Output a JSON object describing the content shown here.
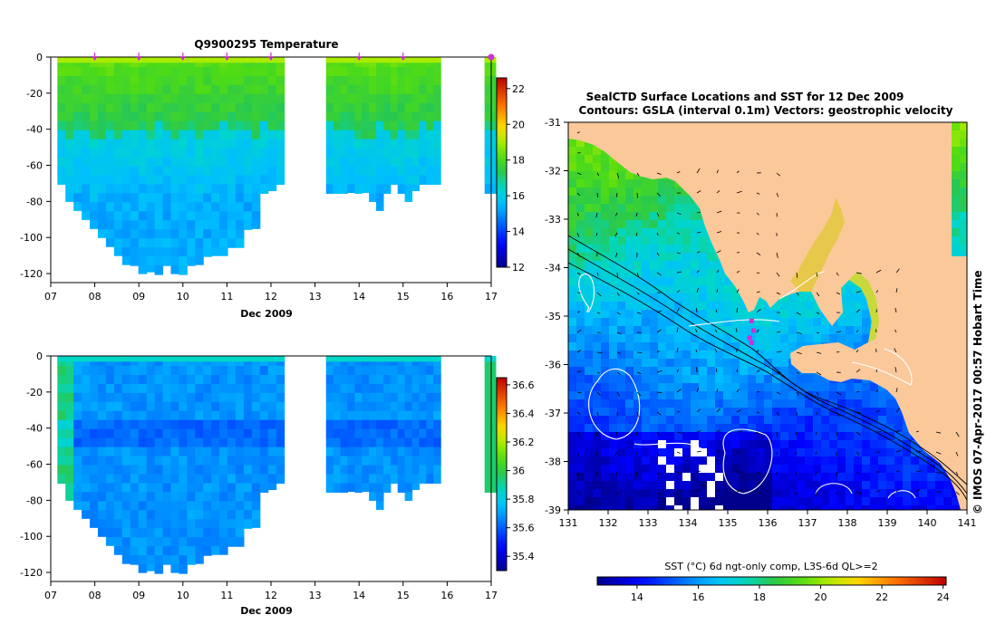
{
  "temperature_title": "Q9900295  Temperature",
  "date_axis_label": "Dec 2009",
  "map_title_line1": "SealCTD Surface Locations and SST for 12 Dec 2009",
  "map_title_line2": "Contours: GSLA (interval 0.1m) Vectors: geostrophic velocity",
  "sst_colorbar_label": "SST (°C) 6d ngt-only comp, L3S-6d QL>=2",
  "vertical_credit": "IMOS 07-Apr-2017 00:57 Hobart Time",
  "copyright_symbol": "©",
  "colors": {
    "land": "#fbc89a",
    "marker": "#d22fd6",
    "contour_white": "#ffffff",
    "contour_black": "#000000"
  },
  "chart_data": [
    {
      "type": "heatmap",
      "name": "temperature-section",
      "title": "Q9900295  Temperature",
      "xlabel": "Dec 2009",
      "x_ticks": [
        "07",
        "08",
        "09",
        "10",
        "11",
        "12",
        "13",
        "14",
        "15",
        "16",
        "17"
      ],
      "y_ticks": [
        "0",
        "-20",
        "-40",
        "-60",
        "-80",
        "-100",
        "-120"
      ],
      "xlim": [
        7,
        17
      ],
      "ylim": [
        -125,
        0
      ],
      "colorbar": {
        "min": 12,
        "max": 22.6,
        "ticks": [
          "12",
          "14",
          "16",
          "18",
          "20",
          "22"
        ]
      },
      "profile_markers_day": [
        8.0,
        9.0,
        10.0,
        11.0,
        12.0,
        14.0,
        15.0,
        17.0
      ],
      "segments": [
        {
          "start": 7.15,
          "end": 12.3,
          "bottom": [
            -72,
            -80,
            -85,
            -90,
            -95,
            -100,
            -105,
            -110,
            -115,
            -118,
            -120,
            -119,
            -121,
            -118,
            -120,
            -121,
            -117,
            -115,
            -112,
            -110,
            -110,
            -108,
            -107,
            -98,
            -95,
            -78,
            -74,
            -73
          ]
        },
        {
          "start": 13.25,
          "end": 15.85,
          "bottom": [
            -78,
            -78,
            -77,
            -75,
            -77,
            -75,
            -80,
            -85,
            -76,
            -72,
            -78,
            -80,
            -74,
            -73,
            -72,
            -72
          ]
        },
        {
          "start": 16.85,
          "end": 17.1,
          "bottom": [
            -76,
            -76
          ]
        }
      ],
      "surface_temp": 18.2,
      "thermocline_depth": -42,
      "deep_temp": 15.3
    },
    {
      "type": "heatmap",
      "name": "salinity-section",
      "title": "",
      "xlabel": "Dec 2009",
      "x_ticks": [
        "07",
        "08",
        "09",
        "10",
        "11",
        "12",
        "13",
        "14",
        "15",
        "16",
        "17"
      ],
      "y_ticks": [
        "0",
        "-20",
        "-40",
        "-60",
        "-80",
        "-100",
        "-120"
      ],
      "xlim": [
        7,
        17
      ],
      "ylim": [
        -125,
        0
      ],
      "colorbar": {
        "min": 35.3,
        "max": 36.65,
        "ticks": [
          "35.4",
          "35.6",
          "35.8",
          "36",
          "36.2",
          "36.4",
          "36.6"
        ]
      },
      "segments": [
        {
          "start": 7.15,
          "end": 12.3,
          "bottom": [
            -72,
            -80,
            -85,
            -90,
            -95,
            -100,
            -105,
            -110,
            -115,
            -118,
            -120,
            -119,
            -121,
            -118,
            -120,
            -121,
            -117,
            -115,
            -112,
            -110,
            -110,
            -108,
            -107,
            -98,
            -95,
            -78,
            -74,
            -73
          ]
        },
        {
          "start": 13.25,
          "end": 15.85,
          "bottom": [
            -78,
            -78,
            -77,
            -75,
            -77,
            -75,
            -80,
            -85,
            -76,
            -72,
            -78,
            -80,
            -74,
            -73,
            -72,
            -72
          ]
        },
        {
          "start": 16.85,
          "end": 17.1,
          "bottom": [
            -76,
            -76
          ]
        }
      ],
      "base_value": 35.68
    },
    {
      "type": "heatmap",
      "name": "sst-map",
      "title": "SealCTD Surface Locations and SST for 12 Dec 2009",
      "subtitle": "Contours: GSLA (interval 0.1m) Vectors: geostrophic velocity",
      "x_ticks": [
        "131",
        "132",
        "133",
        "134",
        "135",
        "136",
        "137",
        "138",
        "139",
        "140",
        "141"
      ],
      "y_ticks": [
        "-31",
        "-32",
        "-33",
        "-34",
        "-35",
        "-36",
        "-37",
        "-38",
        "-39"
      ],
      "xlim": [
        131,
        141
      ],
      "ylim": [
        -39,
        -31
      ],
      "colorbar": {
        "label": "SST (°C) 6d ngt-only comp, L3S-6d QL>=2",
        "min": 12.7,
        "max": 24.1,
        "ticks": [
          "14",
          "16",
          "18",
          "20",
          "22",
          "24"
        ]
      },
      "seal_positions": [
        [
          135.6,
          -35.1
        ],
        [
          135.65,
          -35.3
        ],
        [
          135.55,
          -35.45
        ],
        [
          135.6,
          -35.55
        ]
      ]
    }
  ]
}
